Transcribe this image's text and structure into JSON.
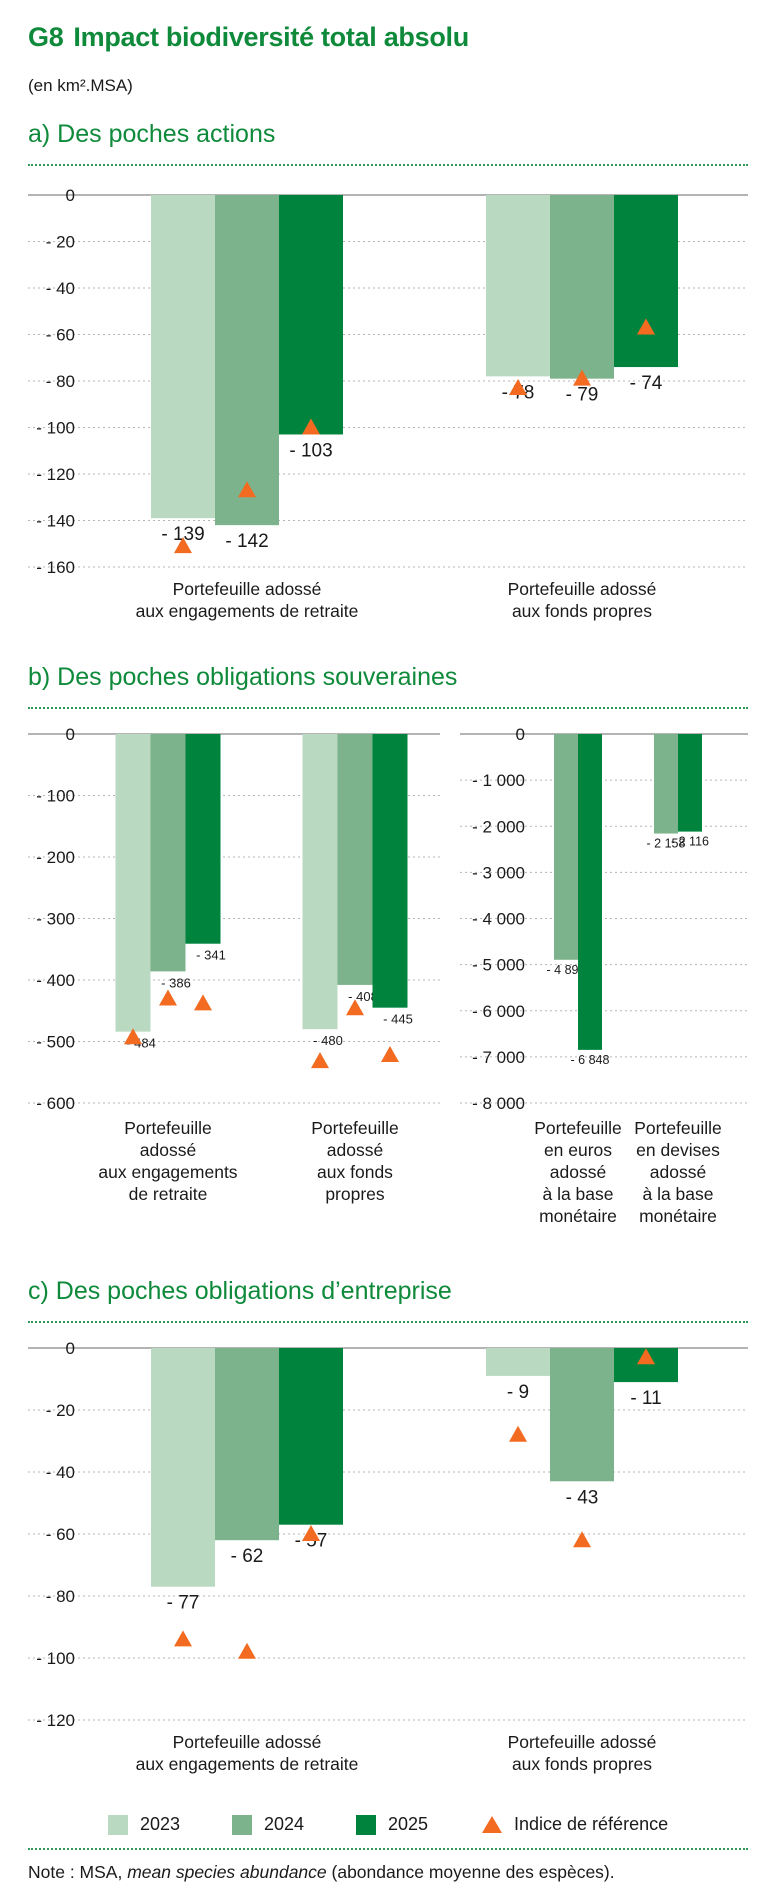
{
  "header": {
    "code": "G8",
    "title": "Impact biodiversité total absolu",
    "unit": "(en km².MSA)"
  },
  "sections": {
    "a": {
      "title": "a)  Des poches actions"
    },
    "b": {
      "title": "b)  Des poches obligations souveraines"
    },
    "c": {
      "title": "c)  Des poches obligations d’entreprise"
    }
  },
  "colors": {
    "y2023": "#b9d9c0",
    "y2024": "#7db38c",
    "y2025": "#00843d",
    "reference": "#f26b21",
    "title_green": "#0f8a3b"
  },
  "legend": {
    "s2023": "2023",
    "s2024": "2024",
    "s2025": "2025",
    "reference": "Indice de référence"
  },
  "note": {
    "prefix": "Note : MSA, ",
    "italic": "mean species abundance",
    "suffix": " (abondance moyenne des espèces)."
  },
  "chart_data": [
    {
      "id": "a",
      "type": "bar",
      "ylim": [
        -160,
        0
      ],
      "yticks": [
        0,
        -20,
        -40,
        -60,
        -80,
        -100,
        -120,
        -140,
        -160
      ],
      "tick_labels": [
        "0",
        "- 20",
        "- 40",
        "- 60",
        "- 80",
        "- 100",
        "- 120",
        "- 140",
        "- 160"
      ],
      "categories": [
        "Portefeuille adossé\naux engagements de retraite",
        "Portefeuille adossé\naux fonds propres"
      ],
      "series": [
        {
          "name": "2023",
          "values": [
            -139,
            -78
          ],
          "labels": [
            "- 139",
            "- 78"
          ]
        },
        {
          "name": "2024",
          "values": [
            -142,
            -79
          ],
          "labels": [
            "- 142",
            "- 79"
          ]
        },
        {
          "name": "2025",
          "values": [
            -103,
            -74
          ],
          "labels": [
            "- 103",
            "- 74"
          ]
        }
      ],
      "reference": [
        [
          -151,
          -127,
          -100
        ],
        [
          -83,
          -79,
          -57
        ]
      ]
    },
    {
      "id": "b1",
      "type": "bar",
      "ylim": [
        -600,
        0
      ],
      "yticks": [
        0,
        -100,
        -200,
        -300,
        -400,
        -500,
        -600
      ],
      "tick_labels": [
        "0",
        "- 100",
        "- 200",
        "- 300",
        "- 400",
        "- 500",
        "- 600"
      ],
      "categories": [
        "Portefeuille\nadossé\naux engagements\nde retraite",
        "Portefeuille\nadossé\naux fonds\npropres"
      ],
      "series": [
        {
          "name": "2023",
          "values": [
            -484,
            -480
          ],
          "labels": [
            "- 484",
            "- 480"
          ]
        },
        {
          "name": "2024",
          "values": [
            -386,
            -408
          ],
          "labels": [
            "- 386",
            "- 408"
          ]
        },
        {
          "name": "2025",
          "values": [
            -341,
            -445
          ],
          "labels": [
            "- 341",
            "- 445"
          ]
        }
      ],
      "reference": [
        [
          -493,
          -430,
          -438
        ],
        [
          -532,
          -446,
          -522
        ]
      ]
    },
    {
      "id": "b2",
      "type": "bar",
      "ylim": [
        -8000,
        0
      ],
      "yticks": [
        0,
        -1000,
        -2000,
        -3000,
        -4000,
        -5000,
        -6000,
        -7000,
        -8000
      ],
      "tick_labels": [
        "0",
        "- 1 000",
        "- 2 000",
        "- 3 000",
        "- 4 000",
        "- 5 000",
        "- 6 000",
        "- 7 000",
        "- 8 000"
      ],
      "categories": [
        "Portefeuille\nen euros\nadossé\nà la base\nmonétaire",
        "Portefeuille\nen devises\nadossé\nà la base\nmonétaire"
      ],
      "series": [
        {
          "name": "2024",
          "values": [
            -4895,
            -2158
          ],
          "labels": [
            "- 4 895",
            "- 2 158"
          ]
        },
        {
          "name": "2025",
          "values": [
            -6848,
            -2116
          ],
          "labels": [
            "- 6 848",
            "- 2 116"
          ]
        }
      ]
    },
    {
      "id": "c",
      "type": "bar",
      "ylim": [
        -120,
        0
      ],
      "yticks": [
        0,
        -20,
        -40,
        -60,
        -80,
        -100,
        -120
      ],
      "tick_labels": [
        "0",
        "- 20",
        "- 40",
        "- 60",
        "- 80",
        "- 100",
        "- 120"
      ],
      "categories": [
        "Portefeuille adossé\naux engagements de retraite",
        "Portefeuille adossé\naux fonds propres"
      ],
      "series": [
        {
          "name": "2023",
          "values": [
            -77,
            -9
          ],
          "labels": [
            "- 77",
            "- 9"
          ]
        },
        {
          "name": "2024",
          "values": [
            -62,
            -43
          ],
          "labels": [
            "- 62",
            "- 43"
          ]
        },
        {
          "name": "2025",
          "values": [
            -57,
            -11
          ],
          "labels": [
            "- 57",
            "- 11"
          ]
        }
      ],
      "reference": [
        [
          -94,
          -98,
          -60
        ],
        [
          -28,
          -62,
          -3
        ]
      ]
    }
  ]
}
